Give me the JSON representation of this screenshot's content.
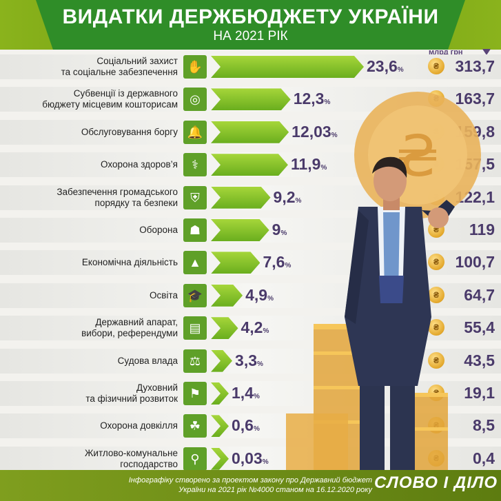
{
  "header": {
    "title": "ВИДАТКИ ДЕРЖБЮДЖЕТУ УКРАЇНИ",
    "subtitle": "НА 2021 РІК",
    "unit": "млрд грн"
  },
  "chart_data": {
    "type": "bar",
    "title": "ВИДАТКИ ДЕРЖБЮДЖЕТУ УКРАЇНИ",
    "subtitle": "НА 2021 РІК",
    "categories": [
      "Соціальний захист та соціальне забезпечення",
      "Субвенції із державного бюджету місцевим кошторисам",
      "Обслуговування боргу",
      "Охорона здоров’я",
      "Забезпечення громадського порядку та безпеки",
      "Оборона",
      "Економічна діяльність",
      "Освіта",
      "Державний апарат, вибори, референдуми",
      "Судова влада",
      "Духовний та фізичний розвиток",
      "Охорона довкілля",
      "Житлово-комунальне господарство"
    ],
    "series": [
      {
        "values": [
          23.6,
          12.3,
          12.03,
          11.9,
          9.2,
          9,
          7.6,
          4.9,
          4.2,
          3.3,
          1.4,
          0.6,
          0.03
        ]
      },
      {
        "name": "млрд грн",
        "values": [
          313.7,
          163.7,
          159.8,
          157.5,
          122.1,
          119,
          100.7,
          64.7,
          55.4,
          43.5,
          19.1,
          8.5,
          0.4
        ]
      }
    ]
  },
  "rows": [
    {
      "label1": "Соціальний захист",
      "label2": "та соціальне забезпечення",
      "pct": "23,6",
      "amount": "313,7",
      "icon": "hand-coin-icon"
    },
    {
      "label1": "Субвенції із державного",
      "label2": "бюджету місцевим кошторисам",
      "pct": "12,3",
      "amount": "163,7",
      "icon": "coin-stack-icon"
    },
    {
      "label1": "Обслуговування боргу",
      "label2": "",
      "pct": "12,03",
      "amount": "159,8",
      "icon": "bell-icon"
    },
    {
      "label1": "Охорона здоров’я",
      "label2": "",
      "pct": "11,9",
      "amount": "157,5",
      "icon": "caduceus-icon"
    },
    {
      "label1": "Забезпечення громадського",
      "label2": "порядку та безпеки",
      "pct": "9,2",
      "amount": "122,1",
      "icon": "shield-icon"
    },
    {
      "label1": "Оборона",
      "label2": "",
      "pct": "9",
      "amount": "119",
      "icon": "soldier-icon"
    },
    {
      "label1": "Економічна діяльність",
      "label2": "",
      "pct": "7,6",
      "amount": "100,7",
      "icon": "growth-chart-icon"
    },
    {
      "label1": "Освіта",
      "label2": "",
      "pct": "4,9",
      "amount": "64,7",
      "icon": "graduation-cap-icon"
    },
    {
      "label1": "Державний апарат,",
      "label2": "вибори, референдуми",
      "pct": "4,2",
      "amount": "55,4",
      "icon": "ballot-icon"
    },
    {
      "label1": "Судова влада",
      "label2": "",
      "pct": "3,3",
      "amount": "43,5",
      "icon": "scales-icon"
    },
    {
      "label1": "Духовний",
      "label2": "та фізичний розвиток",
      "pct": "1,4",
      "amount": "19,1",
      "icon": "runner-icon"
    },
    {
      "label1": "Охорона довкілля",
      "label2": "",
      "pct": "0,6",
      "amount": "8,5",
      "icon": "sprout-icon"
    },
    {
      "label1": "Житлово-комунальне",
      "label2": "господарство",
      "pct": "0,03",
      "amount": "0,4",
      "icon": "faucet-icon"
    }
  ],
  "pct_suffix": "%",
  "footer": {
    "note1": "Інфографіку створено за проектом закону про Державний бюджет",
    "note2": "України на 2021 рік №4000 станом на 16.12.2020 року",
    "logo": "СЛОВО І ДІЛО"
  },
  "colors": {
    "bar": "#8cc72c",
    "text": "#4a3a6a",
    "header": "#2f8d28"
  }
}
